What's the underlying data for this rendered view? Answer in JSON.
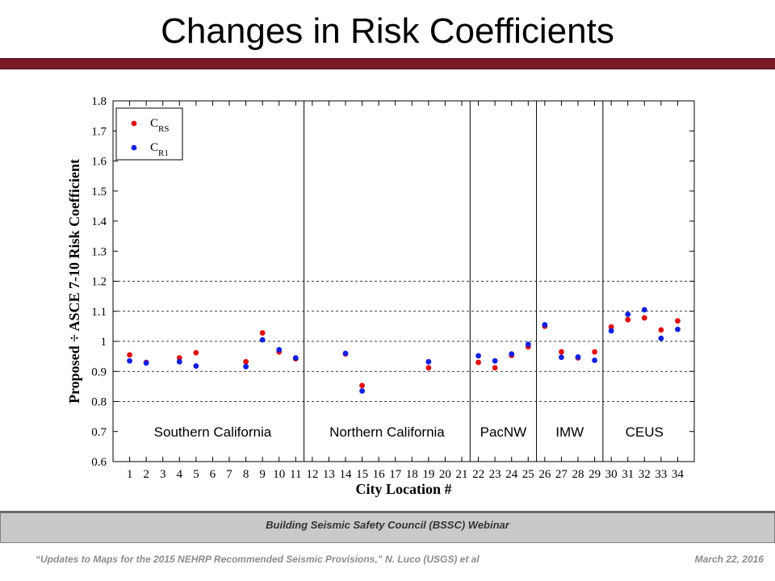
{
  "slide": {
    "title": "Changes in Risk Coefficients",
    "footer": "Building Seismic Safety Council (BSSC) Webinar",
    "citation": "“Updates to Maps for the 2015 NEHRP Recommended Seismic Provisions,” N. Luco (USGS) et al",
    "date": "March 22, 2016"
  },
  "colors": {
    "accent_bar": "#7a1a28",
    "crs": "#e01010",
    "cr1": "#1020e0"
  },
  "chart_data": {
    "type": "scatter",
    "title": "",
    "xlabel": "City Location #",
    "ylabel": "Proposed ÷ ASCE 7-10 Risk Coefficient",
    "xlim": [
      0,
      35
    ],
    "ylim": [
      0.6,
      1.8
    ],
    "x_ticks": [
      1,
      2,
      3,
      4,
      5,
      6,
      7,
      8,
      9,
      10,
      11,
      12,
      13,
      14,
      15,
      16,
      17,
      18,
      19,
      20,
      21,
      22,
      23,
      24,
      25,
      26,
      27,
      28,
      29,
      30,
      31,
      32,
      33,
      34
    ],
    "y_ticks": [
      0.6,
      0.7,
      0.8,
      0.9,
      1,
      1.1,
      1.2,
      1.3,
      1.4,
      1.5,
      1.6,
      1.7,
      1.8
    ],
    "y_tick_labels": [
      "0.6",
      "0.7",
      "0.8",
      "0.9",
      "1",
      "1.1",
      "1.2",
      "1.3",
      "1.4",
      "1.5",
      "1.6",
      "1.7",
      "1.8"
    ],
    "dashed_grid_y": [
      0.8,
      0.9,
      1.0,
      1.1,
      1.2
    ],
    "region_dividers_x": [
      11.5,
      21.5,
      25.5,
      29.5
    ],
    "regions": [
      {
        "label": "Southern California",
        "x_center": 6
      },
      {
        "label": "Northern California",
        "x_center": 16.5
      },
      {
        "label": "PacNW",
        "x_center": 23.5
      },
      {
        "label": "IMW",
        "x_center": 27.5
      },
      {
        "label": "CEUS",
        "x_center": 32
      }
    ],
    "legend_position": "top-left",
    "series": [
      {
        "name": "C",
        "subscript": "RS",
        "color": "#e01010",
        "points": [
          [
            1,
            0.955
          ],
          [
            2,
            0.93
          ],
          [
            4,
            0.945
          ],
          [
            5,
            0.962
          ],
          [
            8,
            0.932
          ],
          [
            9,
            1.028
          ],
          [
            10,
            0.965
          ],
          [
            11,
            0.942
          ],
          [
            14,
            0.958
          ],
          [
            15,
            0.853
          ],
          [
            19,
            0.912
          ],
          [
            22,
            0.93
          ],
          [
            23,
            0.912
          ],
          [
            24,
            0.953
          ],
          [
            25,
            0.982
          ],
          [
            26,
            1.05
          ],
          [
            27,
            0.965
          ],
          [
            28,
            0.945
          ],
          [
            29,
            0.965
          ],
          [
            30,
            1.048
          ],
          [
            31,
            1.072
          ],
          [
            32,
            1.078
          ],
          [
            33,
            1.038
          ],
          [
            34,
            1.068
          ]
        ]
      },
      {
        "name": "C",
        "subscript": "R1",
        "color": "#1020e0",
        "points": [
          [
            1,
            0.935
          ],
          [
            2,
            0.928
          ],
          [
            4,
            0.932
          ],
          [
            5,
            0.918
          ],
          [
            8,
            0.916
          ],
          [
            9,
            1.005
          ],
          [
            10,
            0.972
          ],
          [
            11,
            0.945
          ],
          [
            14,
            0.96
          ],
          [
            15,
            0.835
          ],
          [
            19,
            0.932
          ],
          [
            22,
            0.952
          ],
          [
            23,
            0.935
          ],
          [
            24,
            0.958
          ],
          [
            25,
            0.99
          ],
          [
            26,
            1.055
          ],
          [
            27,
            0.947
          ],
          [
            28,
            0.948
          ],
          [
            29,
            0.937
          ],
          [
            30,
            1.035
          ],
          [
            31,
            1.09
          ],
          [
            32,
            1.105
          ],
          [
            33,
            1.01
          ],
          [
            34,
            1.04
          ]
        ]
      }
    ]
  }
}
